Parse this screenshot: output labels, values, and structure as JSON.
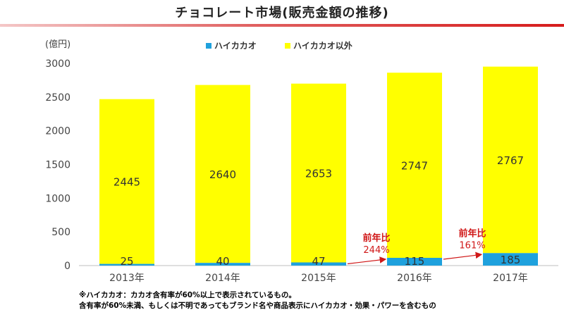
{
  "title": "チョコレート市場(販売金額の推移)",
  "colors": {
    "high_cacao": "#1fa1dd",
    "other": "#ffff00",
    "growth": "#d01818",
    "axis": "#bfbfbf"
  },
  "chart_data": {
    "type": "bar",
    "stacked": true,
    "categories": [
      "2013年",
      "2014年",
      "2015年",
      "2016年",
      "2017年"
    ],
    "series": [
      {
        "name": "ハイカカオ",
        "values": [
          25,
          40,
          47,
          115,
          185
        ],
        "color": "#1fa1dd"
      },
      {
        "name": "ハイカカオ以外",
        "values": [
          2445,
          2640,
          2653,
          2747,
          2767
        ],
        "color": "#ffff00"
      }
    ],
    "ylabel": "(億円)",
    "ylim": [
      0,
      3000
    ],
    "yticks": [
      0,
      500,
      1000,
      1500,
      2000,
      2500,
      3000
    ],
    "grid": false,
    "legend": "top-center",
    "annotations": [
      {
        "label": "前年比",
        "value": "244%",
        "from": "2015年",
        "to": "2016年"
      },
      {
        "label": "前年比",
        "value": "161%",
        "from": "2016年",
        "to": "2017年"
      }
    ]
  },
  "footnotes": [
    "※ハイカカオ：カカオ含有率が60%以上で表示されているもの。",
    "含有率が60%未満、もしくは不明であってもブランド名や商品表示にハイカカオ・効果・パワーを含むもの"
  ]
}
